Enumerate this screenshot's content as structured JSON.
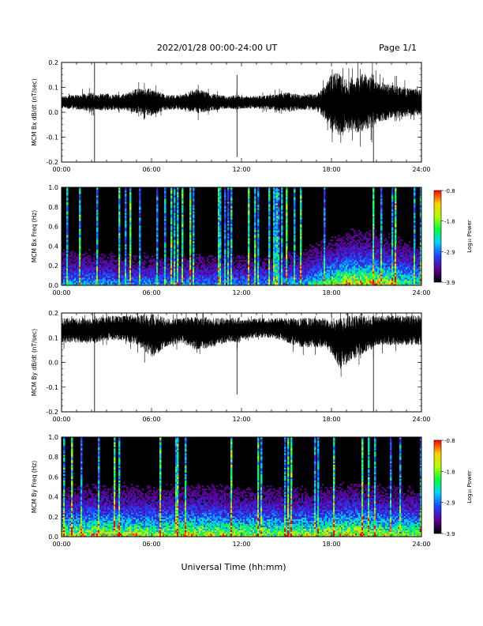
{
  "header": {
    "title": "2022/01/28  00:00-24:00 UT",
    "page": "Page 1/1"
  },
  "footer": {
    "xlabel": "Universal Time (hh:mm)"
  },
  "colors": {
    "trace": "#000000",
    "spectrogram_background": "#000000",
    "colorbar": [
      "#000000",
      "#5a0090",
      "#2040ff",
      "#00d0ff",
      "#00ff40",
      "#b0ff00",
      "#ffd000",
      "#ff0000"
    ]
  },
  "chart_data": [
    {
      "type": "line",
      "ylabel": "MCM Bx dB/dt (nT/sec)",
      "xlim": [
        0,
        24
      ],
      "ylim": [
        -0.2,
        0.2
      ],
      "x_tick_labels": [
        "00:00",
        "06:00",
        "12:00",
        "18:00",
        "24:00"
      ],
      "y_tick_labels": [
        "0.2",
        "0.1",
        "0.0",
        "-0.1",
        "-0.2"
      ],
      "series": [
        {
          "x": [
            0,
            1,
            2,
            2.2,
            3,
            4,
            5,
            6,
            7,
            8,
            9,
            10,
            11,
            11.8,
            12,
            13,
            14,
            15,
            16,
            17,
            17.5,
            18,
            18.5,
            19,
            19.5,
            20,
            20.5,
            20.8,
            21,
            22,
            23,
            24
          ],
          "center": [
            0.04,
            0.04,
            0.04,
            0.04,
            0.04,
            0.04,
            0.045,
            0.04,
            0.04,
            0.04,
            0.045,
            0.04,
            0.04,
            0.04,
            0.04,
            0.04,
            0.04,
            0.04,
            0.04,
            0.04,
            0.04,
            0.035,
            0.03,
            0.03,
            0.03,
            0.035,
            0.04,
            0.04,
            0.04,
            0.04,
            0.04,
            0.04
          ],
          "amplitude": [
            0.025,
            0.03,
            0.04,
            0.03,
            0.035,
            0.03,
            0.05,
            0.055,
            0.03,
            0.03,
            0.05,
            0.035,
            0.025,
            0.03,
            0.025,
            0.025,
            0.03,
            0.04,
            0.03,
            0.035,
            0.06,
            0.12,
            0.13,
            0.1,
            0.11,
            0.12,
            0.11,
            0.1,
            0.08,
            0.07,
            0.06,
            0.05
          ],
          "spikes": [
            {
              "x": 2.2,
              "low": -0.2,
              "high": 0.2
            },
            {
              "x": 11.7,
              "low": -0.18,
              "high": 0.15
            },
            {
              "x": 20.8,
              "low": -0.2,
              "high": 0.15
            }
          ]
        }
      ]
    },
    {
      "type": "heatmap",
      "ylabel": "MCM Bx Freq (Hz)",
      "colorbar_label": "Log₁₀ Power",
      "colorbar_ticks": [
        "-0.8",
        "-1.8",
        "-2.9",
        "-3.9"
      ],
      "clim": [
        -3.9,
        -0.8
      ],
      "xlim": [
        0,
        24
      ],
      "ylim": [
        0,
        1.0
      ],
      "x_tick_labels": [
        "00:00",
        "06:00",
        "12:00",
        "18:00",
        "24:00"
      ],
      "y_tick_labels": [
        "1.0",
        "0.8",
        "0.6",
        "0.4",
        "0.2",
        "0.0"
      ],
      "activity": {
        "x": [
          0,
          2,
          4,
          6,
          8,
          10,
          12,
          14,
          16,
          17,
          18,
          19,
          20,
          21,
          22,
          23,
          24
        ],
        "level": [
          0.35,
          0.35,
          0.3,
          0.3,
          0.3,
          0.3,
          0.3,
          0.3,
          0.35,
          0.45,
          0.6,
          0.7,
          0.75,
          0.7,
          0.6,
          0.5,
          0.45
        ]
      }
    },
    {
      "type": "line",
      "ylabel": "MCM By dB/dt (nT/sec)",
      "xlim": [
        0,
        24
      ],
      "ylim": [
        -0.2,
        0.2
      ],
      "x_tick_labels": [
        "00:00",
        "06:00",
        "12:00",
        "18:00",
        "24:00"
      ],
      "y_tick_labels": [
        "0.2",
        "0.1",
        "0.0",
        "-0.1",
        "-0.2"
      ],
      "series": [
        {
          "x": [
            0,
            1,
            2,
            2.2,
            3,
            4,
            5,
            6,
            7,
            8,
            9,
            10,
            11,
            11.8,
            12,
            13,
            14,
            15,
            16,
            17,
            17.5,
            18,
            18.5,
            19,
            19.5,
            20,
            20.5,
            20.8,
            21,
            22,
            23,
            24
          ],
          "center": [
            0.13,
            0.13,
            0.13,
            0.13,
            0.14,
            0.14,
            0.13,
            0.11,
            0.12,
            0.13,
            0.12,
            0.12,
            0.13,
            0.13,
            0.13,
            0.14,
            0.14,
            0.13,
            0.12,
            0.12,
            0.12,
            0.1,
            0.08,
            0.09,
            0.1,
            0.11,
            0.12,
            0.12,
            0.13,
            0.13,
            0.13,
            0.13
          ],
          "amplitude": [
            0.05,
            0.05,
            0.05,
            0.05,
            0.05,
            0.05,
            0.06,
            0.09,
            0.06,
            0.05,
            0.07,
            0.06,
            0.05,
            0.05,
            0.04,
            0.04,
            0.04,
            0.05,
            0.06,
            0.06,
            0.06,
            0.07,
            0.1,
            0.1,
            0.09,
            0.08,
            0.07,
            0.07,
            0.06,
            0.06,
            0.06,
            0.06
          ],
          "spikes": [
            {
              "x": 2.2,
              "low": -0.2,
              "high": 0.2
            },
            {
              "x": 11.7,
              "low": -0.13,
              "high": 0.16
            },
            {
              "x": 20.8,
              "low": -0.2,
              "high": 0.18
            }
          ]
        }
      ]
    },
    {
      "type": "heatmap",
      "ylabel": "MCM By Freq (Hz)",
      "colorbar_label": "Log₁₀ Power",
      "colorbar_ticks": [
        "-0.8",
        "-1.8",
        "-2.9",
        "-3.9"
      ],
      "clim": [
        -3.9,
        -0.8
      ],
      "xlim": [
        0,
        24
      ],
      "ylim": [
        0,
        1.0
      ],
      "x_tick_labels": [
        "00:00",
        "06:00",
        "12:00",
        "18:00",
        "24:00"
      ],
      "y_tick_labels": [
        "1.0",
        "0.8",
        "0.6",
        "0.4",
        "0.2",
        "0.0"
      ],
      "activity": {
        "x": [
          0,
          2,
          4,
          6,
          8,
          10,
          12,
          14,
          16,
          17,
          18,
          19,
          20,
          21,
          22,
          23,
          24
        ],
        "level": [
          0.6,
          0.65,
          0.65,
          0.6,
          0.65,
          0.65,
          0.6,
          0.6,
          0.6,
          0.6,
          0.65,
          0.7,
          0.7,
          0.65,
          0.6,
          0.6,
          0.55
        ]
      }
    }
  ]
}
